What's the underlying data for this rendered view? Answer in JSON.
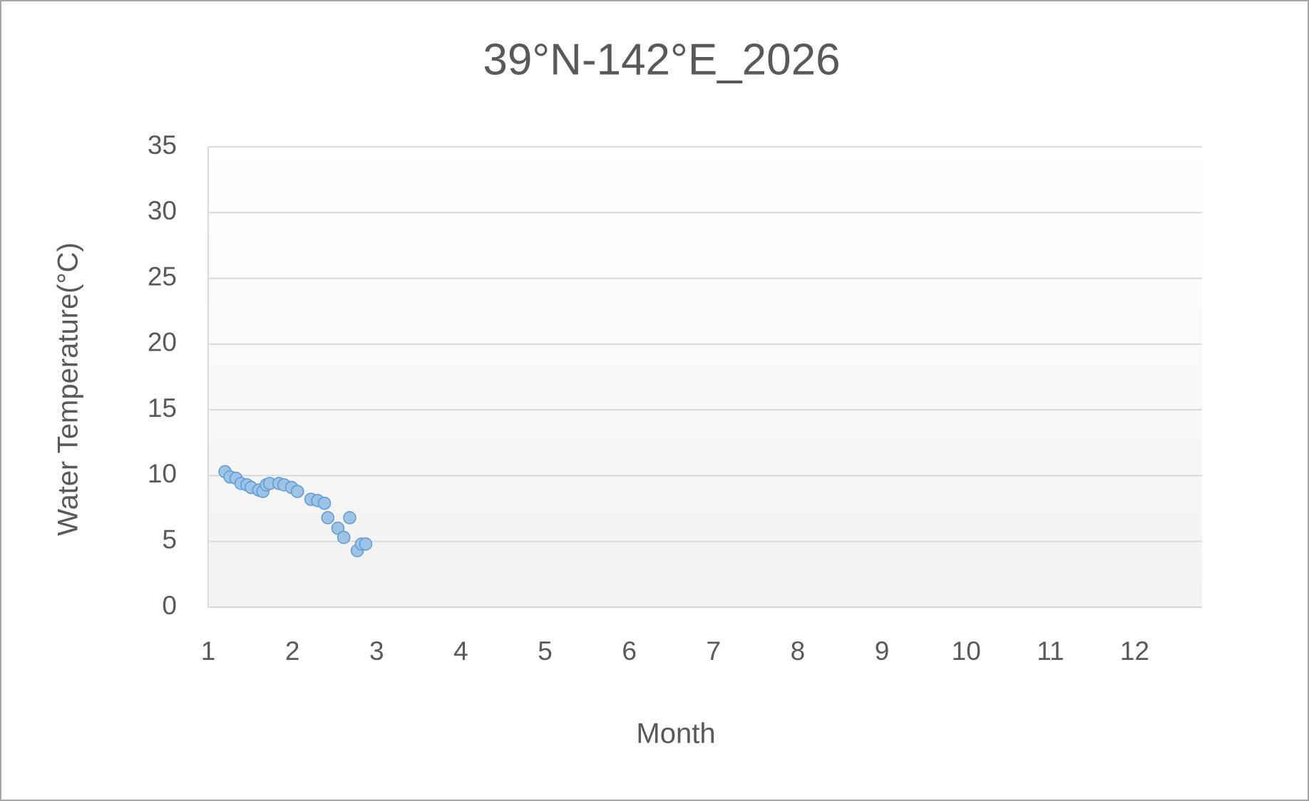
{
  "chart_data": {
    "type": "scatter",
    "title": "39°N-142°E_2026",
    "x_label": "Month",
    "y_label": "Water Temperature(°C)",
    "series": [
      {
        "name": "Water Temperature",
        "color": "#9dc3e6",
        "x": [
          1.2,
          1.26,
          1.33,
          1.39,
          1.46,
          1.51,
          1.6,
          1.65,
          1.69,
          1.73,
          1.84,
          1.9,
          1.99,
          2.06,
          2.22,
          2.3,
          2.38,
          2.42,
          2.54,
          2.61,
          2.68,
          2.77,
          2.82,
          2.87
        ],
        "values": [
          10.3,
          9.9,
          9.8,
          9.4,
          9.3,
          9.1,
          8.9,
          8.8,
          9.3,
          9.4,
          9.4,
          9.3,
          9.1,
          8.8,
          8.2,
          8.1,
          7.9,
          6.8,
          6.0,
          5.3,
          6.8,
          4.3,
          4.8,
          4.8
        ]
      }
    ],
    "xlim": [
      1,
      12.8
    ],
    "xticks": [
      1,
      2,
      3,
      4,
      5,
      6,
      7,
      8,
      9,
      10,
      11,
      12
    ],
    "ylim": [
      0,
      35
    ],
    "yticks": [
      0,
      5,
      10,
      15,
      20,
      25,
      30,
      35
    ],
    "grid": true
  }
}
